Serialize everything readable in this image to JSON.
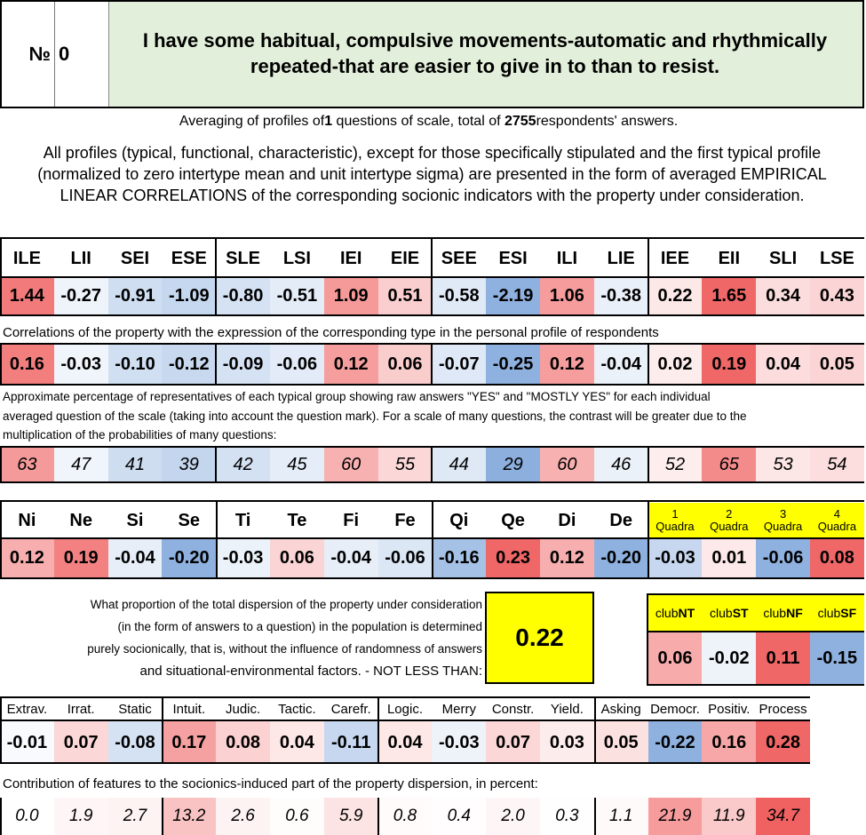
{
  "header": {
    "number_label": "№",
    "number_value": "0",
    "question": "I have some habitual, compulsive movements-automatic and rhythmically repeated-that are easier to give in to than to resist."
  },
  "averaging": {
    "prefix": "Averaging of profiles of ",
    "questions": "1",
    "middle": " questions of scale, total of ",
    "respondents": "2755",
    "suffix": " respondents' answers."
  },
  "description": "All profiles (typical, functional, characteristic), except for those specifically stipulated and the first typical profile (normalized to zero intertype mean and unit intertype sigma) are presented in the form of averaged EMPIRICAL LINEAR CORRELATIONS of the corresponding socionic indicators with the property under consideration.",
  "types": {
    "headers": [
      "ILE",
      "LII",
      "SEI",
      "ESE",
      "SLE",
      "LSI",
      "IEI",
      "EIE",
      "SEE",
      "ESI",
      "ILI",
      "LIE",
      "IEE",
      "EII",
      "SLI",
      "LSE"
    ],
    "normalized": [
      "1.44",
      "-0.27",
      "-0.91",
      "-1.09",
      "-0.80",
      "-0.51",
      "1.09",
      "0.51",
      "-0.58",
      "-2.19",
      "1.06",
      "-0.38",
      "0.22",
      "1.65",
      "0.34",
      "0.43"
    ],
    "correlations_caption": "Correlations of the property with the expression of the corresponding type in the personal profile of respondents",
    "correlations": [
      "0.16",
      "-0.03",
      "-0.10",
      "-0.12",
      "-0.09",
      "-0.06",
      "0.12",
      "0.06",
      "-0.07",
      "-0.25",
      "0.12",
      "-0.04",
      "0.02",
      "0.19",
      "0.04",
      "0.05"
    ],
    "percent_caption_lines": [
      "Approximate percentage of representatives of each typical group showing raw answers \"YES\" and \"MOSTLY YES\" for each individual",
      "averaged question of the scale (taking into account the question mark). For a scale of many questions, the contrast will be greater due to the",
      "multiplication of the probabilities of many questions:"
    ],
    "percentages": [
      "63",
      "47",
      "41",
      "39",
      "42",
      "45",
      "60",
      "55",
      "44",
      "29",
      "60",
      "46",
      "52",
      "65",
      "53",
      "54"
    ]
  },
  "functions": {
    "headers": [
      "Ni",
      "Ne",
      "Si",
      "Se",
      "Ti",
      "Te",
      "Fi",
      "Fe",
      "Qi",
      "Qe",
      "Di",
      "De"
    ],
    "values": [
      "0.12",
      "0.19",
      "-0.04",
      "-0.20",
      "-0.03",
      "0.06",
      "-0.04",
      "-0.06",
      "-0.16",
      "0.23",
      "0.12",
      "-0.20"
    ],
    "quadra_headers": [
      {
        "num": "1",
        "word": "Quadra"
      },
      {
        "num": "2",
        "word": "Quadra"
      },
      {
        "num": "3",
        "word": "Quadra"
      },
      {
        "num": "4",
        "word": "Quadra"
      }
    ],
    "quadra_values": [
      "-0.03",
      "0.01",
      "-0.06",
      "0.08"
    ]
  },
  "dispersion": {
    "lines": [
      "What proportion of the total dispersion of the property under consideration",
      "(in the form of answers to a question) in the population is determined",
      "purely socionically, that is, without the influence of randomness of answers",
      "and situational-environmental factors. - NOT LESS THAN:"
    ],
    "value": "0.22"
  },
  "clubs": {
    "prefix": "club",
    "names": [
      "NT",
      "ST",
      "NF",
      "SF"
    ],
    "values": [
      "0.06",
      "-0.02",
      "0.11",
      "-0.15"
    ]
  },
  "traits": {
    "headers": [
      "Extrav.",
      "Irrat.",
      "Static",
      "Intuit.",
      "Judic.",
      "Tactic.",
      "Carefr.",
      "Logic.",
      "Merry",
      "Constr.",
      "Yield.",
      "Asking",
      "Democr.",
      "Positiv.",
      "Process"
    ],
    "values": [
      "-0.01",
      "0.07",
      "-0.08",
      "0.17",
      "0.08",
      "0.04",
      "-0.11",
      "0.04",
      "-0.03",
      "0.07",
      "0.03",
      "0.05",
      "-0.22",
      "0.16",
      "0.28"
    ],
    "contribution_caption": "Contribution of features to the socionics-induced part of the property dispersion, in percent:",
    "contributions": [
      "0.0",
      "1.9",
      "2.7",
      "13.2",
      "2.6",
      "0.6",
      "5.9",
      "0.8",
      "0.4",
      "2.0",
      "0.3",
      "1.1",
      "21.9",
      "11.9",
      "34.7"
    ]
  },
  "colors": {
    "header_bg": "#e2efda",
    "yellow": "#ffff00",
    "red_strong": "#ef5a5a",
    "blue_strong": "#8eb0de"
  }
}
